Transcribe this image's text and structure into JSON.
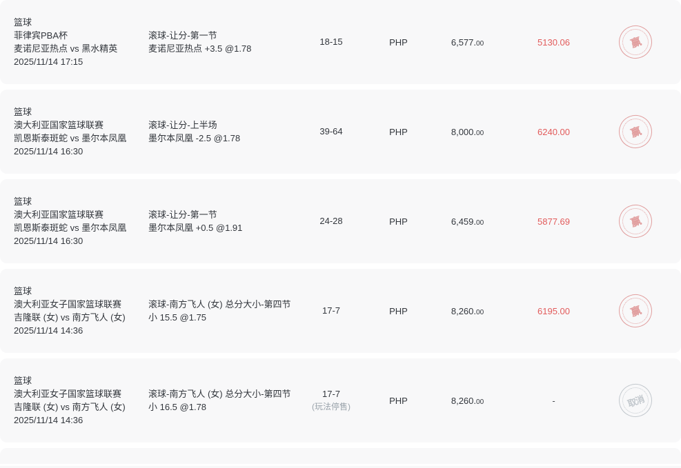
{
  "colors": {
    "card_bg": "#f8f8f9",
    "text": "#32363c",
    "win_red": "#e25b5b",
    "muted_gray": "#9aa3ab",
    "stamp_red": "#dd8f8f",
    "stamp_gray": "#bdc3c9"
  },
  "stamps": {
    "win_label": "赢",
    "cancel_label": "取消"
  },
  "rows": [
    {
      "sport": "篮球",
      "league": "菲律宾PBA杯",
      "teams": "麦诺尼亚热点 vs 黑水精英",
      "datetime": "2025/11/14 17:15",
      "bet_type": "滚球-让分-第一节",
      "bet_pick": "麦诺尼亚热点 +3.5 @1.78",
      "score": "18-15",
      "score_note": "",
      "currency": "PHP",
      "amount_whole": "6,577.",
      "amount_cents": "00",
      "win": "5130.06"
    },
    {
      "sport": "篮球",
      "league": "澳大利亚国家篮球联赛",
      "teams": "凯恩斯泰斑蛇 vs 墨尔本凤凰",
      "datetime": "2025/11/14 16:30",
      "bet_type": "滚球-让分-上半场",
      "bet_pick": "墨尔本凤凰 -2.5 @1.78",
      "score": "39-64",
      "score_note": "",
      "currency": "PHP",
      "amount_whole": "8,000.",
      "amount_cents": "00",
      "win": "6240.00"
    },
    {
      "sport": "篮球",
      "league": "澳大利亚国家篮球联赛",
      "teams": "凯恩斯泰斑蛇 vs 墨尔本凤凰",
      "datetime": "2025/11/14 16:30",
      "bet_type": "滚球-让分-第一节",
      "bet_pick": "墨尔本凤凰 +0.5 @1.91",
      "score": "24-28",
      "score_note": "",
      "currency": "PHP",
      "amount_whole": "6,459.",
      "amount_cents": "00",
      "win": "5877.69"
    },
    {
      "sport": "篮球",
      "league": "澳大利亚女子国家篮球联赛",
      "teams": "吉隆联 (女) vs 南方飞人 (女)",
      "datetime": "2025/11/14 14:36",
      "bet_type": "滚球-南方飞人 (女) 总分大小-第四节",
      "bet_pick": "小 15.5 @1.75",
      "score": "17-7",
      "score_note": "",
      "currency": "PHP",
      "amount_whole": "8,260.",
      "amount_cents": "00",
      "win": "6195.00"
    },
    {
      "sport": "篮球",
      "league": "澳大利亚女子国家篮球联赛",
      "teams": "吉隆联 (女) vs 南方飞人 (女)",
      "datetime": "2025/11/14 14:36",
      "bet_type": "滚球-南方飞人 (女) 总分大小-第四节",
      "bet_pick": "小 16.5 @1.78",
      "score": "17-7",
      "score_note": "(玩法停售)",
      "currency": "PHP",
      "amount_whole": "8,260.",
      "amount_cents": "00",
      "win": "-"
    }
  ]
}
